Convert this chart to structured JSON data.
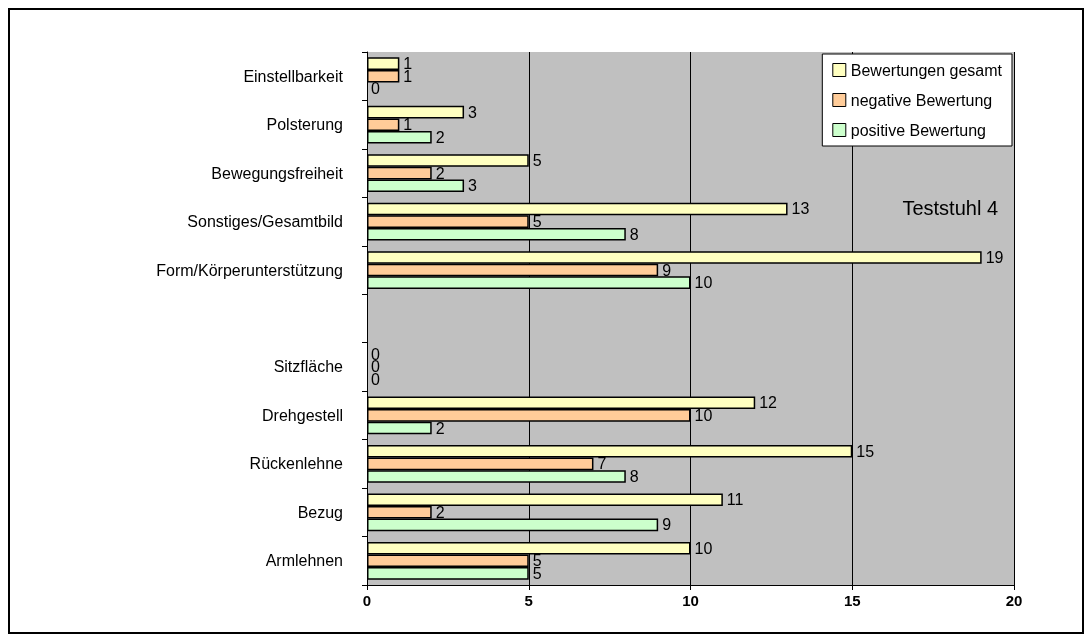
{
  "chart_data": {
    "type": "bar",
    "orientation": "horizontal",
    "annotations": [
      "Teststuhl 4"
    ],
    "categories": [
      "Einstellbarkeit",
      "Polsterung",
      "Bewegungsfreiheit",
      "Sonstiges/Gesamtbild",
      "Form/Körperunterstützung",
      null,
      "Sitzfläche",
      "Drehgestell",
      "Rückenlehne",
      "Bezug",
      "Armlehnen"
    ],
    "series": [
      {
        "name": "Bewertungen gesamt",
        "color": "#ffffc0",
        "values": [
          1,
          3,
          5,
          13,
          19,
          null,
          0,
          12,
          15,
          11,
          10
        ]
      },
      {
        "name": "negative Bewertung",
        "color": "#ffcc99",
        "values": [
          1,
          1,
          2,
          5,
          9,
          null,
          0,
          10,
          7,
          2,
          5
        ]
      },
      {
        "name": "positive Bewertung",
        "color": "#ccffcc",
        "values": [
          0,
          2,
          3,
          8,
          10,
          null,
          0,
          2,
          8,
          9,
          5
        ]
      }
    ],
    "xlim": [
      0,
      20
    ],
    "xticks": [
      0,
      5,
      10,
      15,
      20
    ],
    "grid": "x",
    "legend": "top right",
    "data_labels": true
  }
}
